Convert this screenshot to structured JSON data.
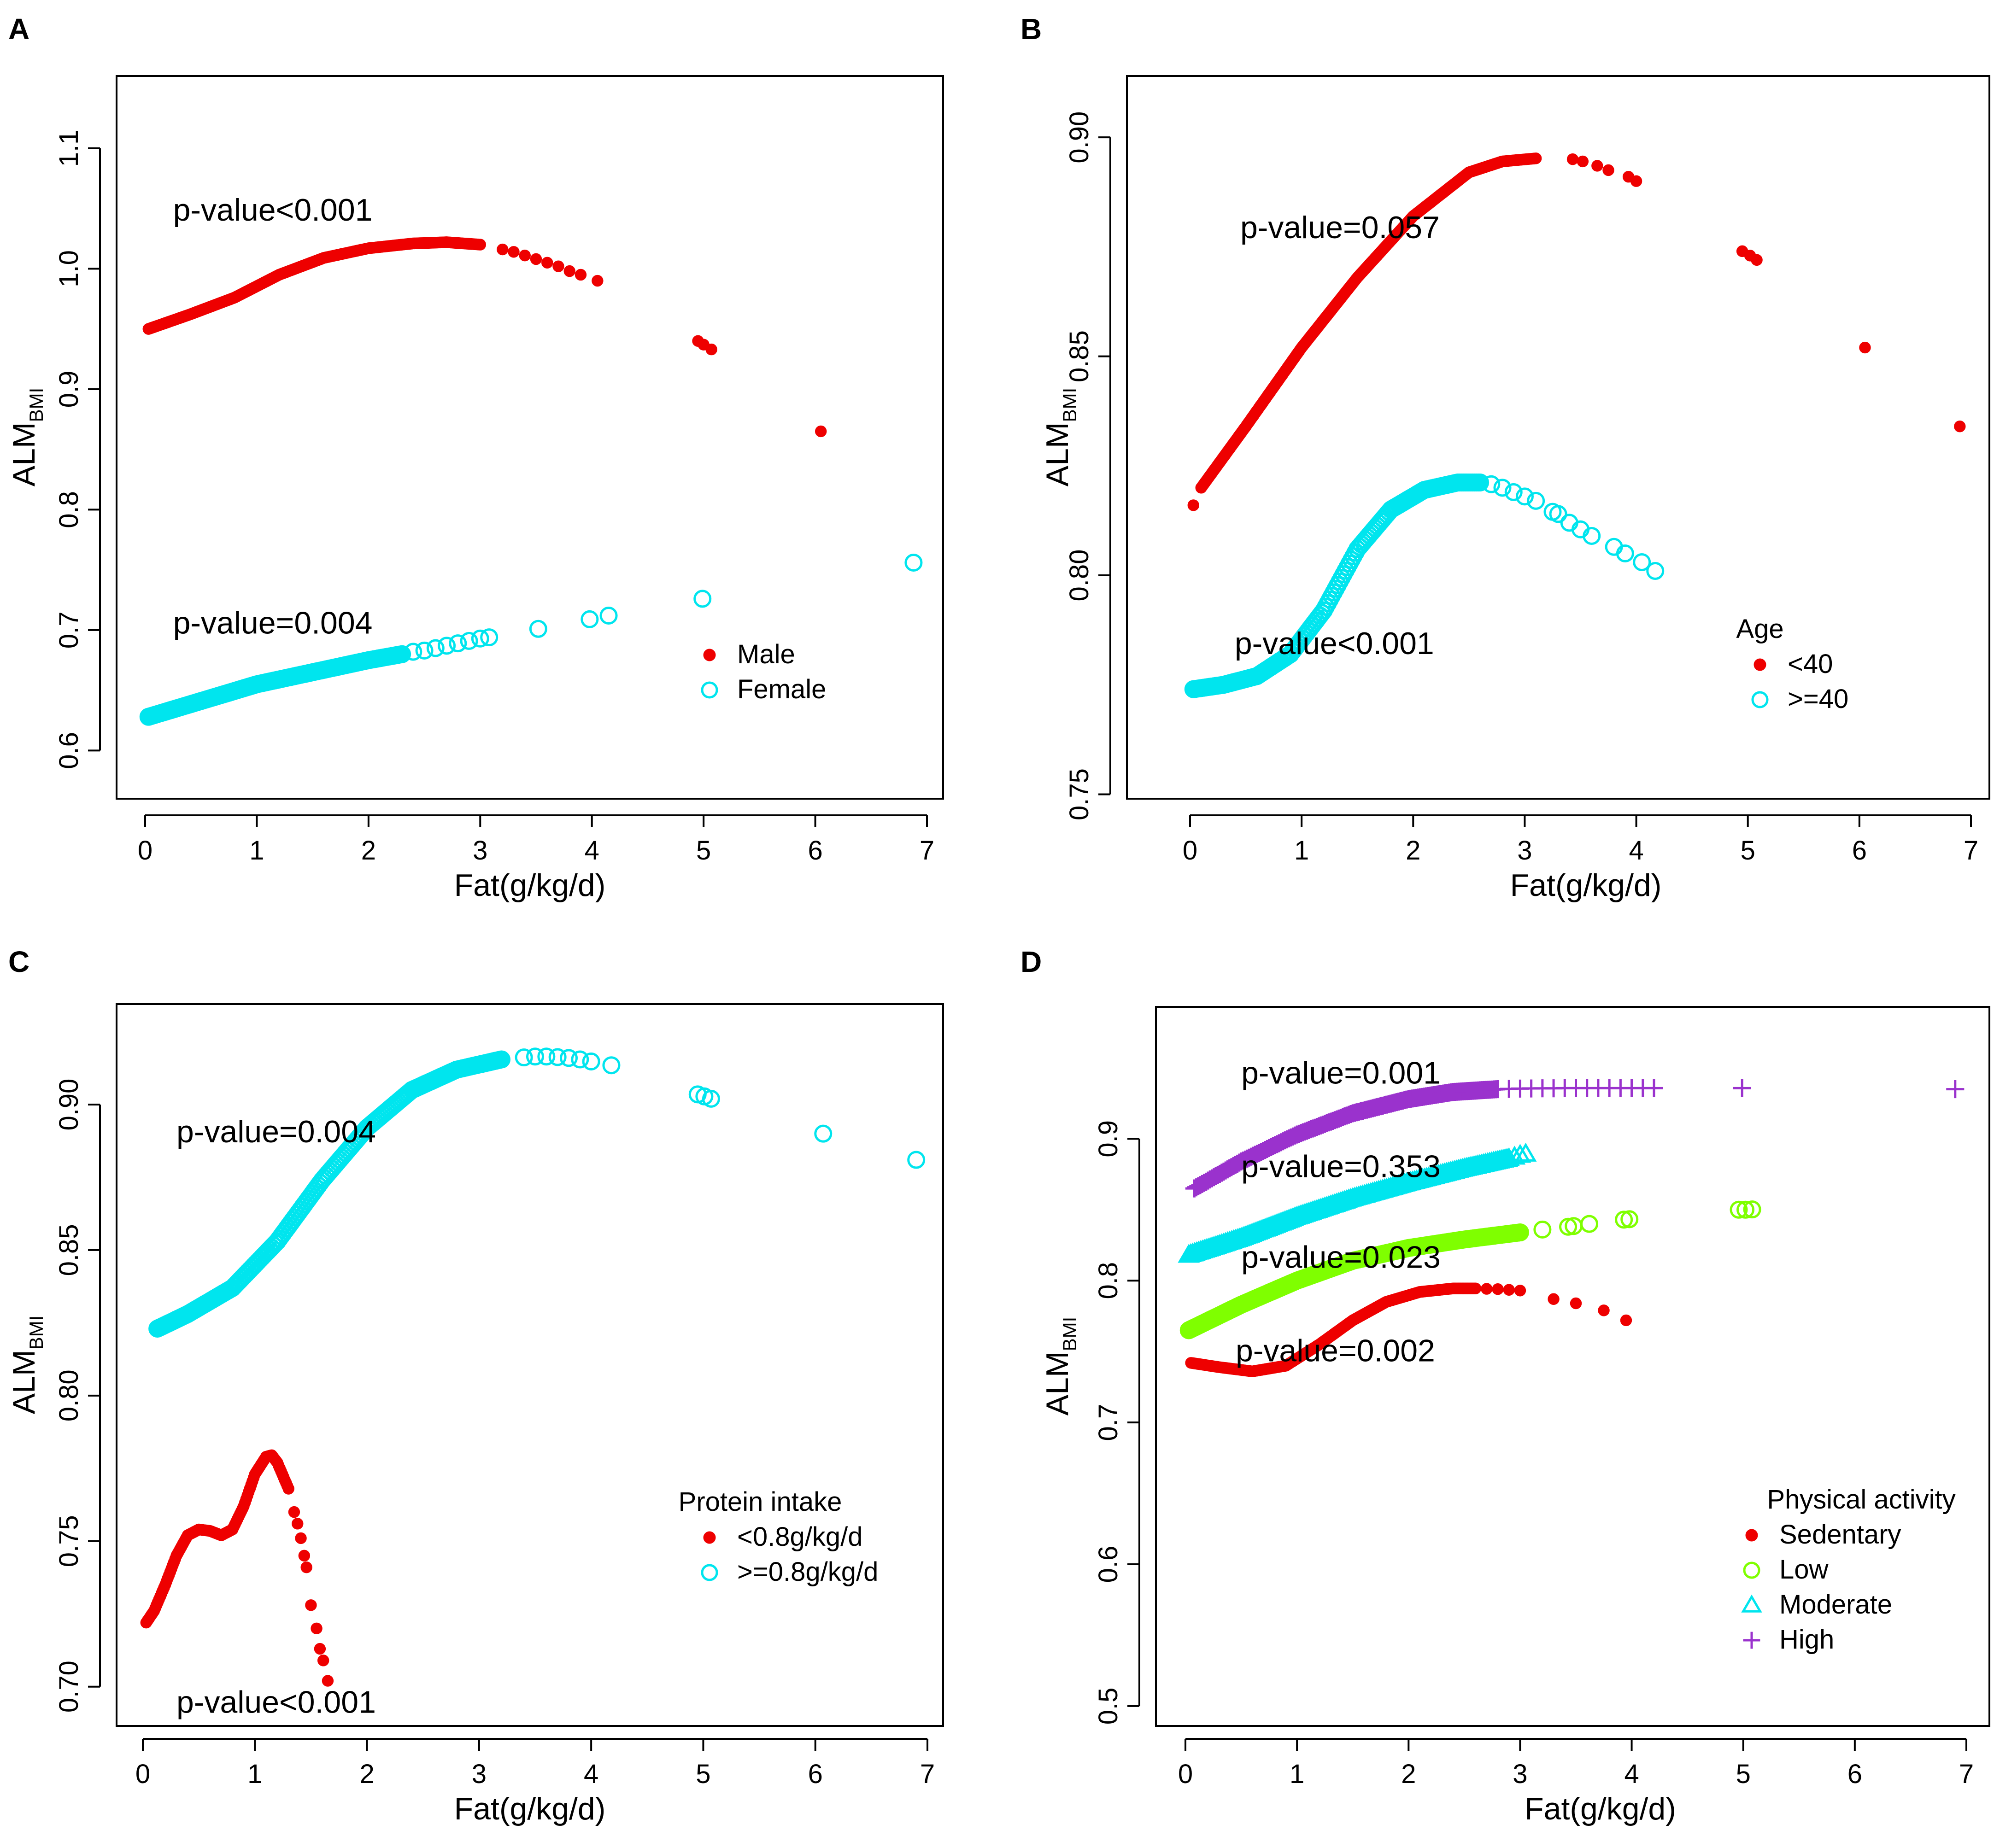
{
  "figure": {
    "colors": {
      "red": "#ee0000",
      "cyan": "#00e5ee",
      "green": "#7fff00",
      "purple": "#9a32cd",
      "axis": "#000000"
    }
  },
  "chart_data": [
    {
      "id": "A",
      "panel_label": "A",
      "type": "scatter",
      "xlabel": "Fat(g/kg/d)",
      "ylabel_main": "ALM",
      "ylabel_sub": "BMI",
      "xlim": [
        0,
        7
      ],
      "ylim": [
        0.56,
        1.16
      ],
      "xticks": [
        0,
        1,
        2,
        3,
        4,
        5,
        6,
        7
      ],
      "yticks": [
        0.6,
        0.7,
        0.8,
        0.9,
        1.0,
        1.1
      ],
      "ytick_labels": [
        "0.6",
        "0.7",
        "0.8",
        "0.9",
        "1.0",
        "1.1"
      ],
      "legend": {
        "title": "",
        "position": "bottom-right"
      },
      "series": [
        {
          "name": "Male",
          "color": "red",
          "marker": "filled-circle",
          "curve": [
            [
              0.03,
              0.95
            ],
            [
              0.4,
              0.962
            ],
            [
              0.8,
              0.976
            ],
            [
              1.2,
              0.995
            ],
            [
              1.6,
              1.009
            ],
            [
              2.0,
              1.017
            ],
            [
              2.4,
              1.021
            ],
            [
              2.7,
              1.022
            ],
            [
              3.0,
              1.02
            ]
          ],
          "points": [
            [
              3.2,
              1.016
            ],
            [
              3.3,
              1.014
            ],
            [
              3.4,
              1.011
            ],
            [
              3.5,
              1.008
            ],
            [
              3.6,
              1.005
            ],
            [
              3.7,
              1.002
            ],
            [
              3.8,
              0.998
            ],
            [
              3.9,
              0.995
            ],
            [
              4.05,
              0.99
            ],
            [
              4.95,
              0.94
            ],
            [
              5.0,
              0.937
            ],
            [
              5.07,
              0.933
            ],
            [
              6.05,
              0.865
            ]
          ]
        },
        {
          "name": "Female",
          "color": "cyan",
          "marker": "open-circle",
          "curve": [
            [
              0.03,
              0.628
            ],
            [
              1.0,
              0.655
            ],
            [
              2.0,
              0.675
            ],
            [
              2.3,
              0.68
            ]
          ],
          "points": [
            [
              2.4,
              0.682
            ],
            [
              2.5,
              0.683
            ],
            [
              2.6,
              0.685
            ],
            [
              2.7,
              0.687
            ],
            [
              2.8,
              0.689
            ],
            [
              2.9,
              0.691
            ],
            [
              3.0,
              0.693
            ],
            [
              3.08,
              0.694
            ],
            [
              3.52,
              0.701
            ],
            [
              3.98,
              0.709
            ],
            [
              4.15,
              0.712
            ],
            [
              4.99,
              0.726
            ],
            [
              6.88,
              0.756
            ]
          ]
        }
      ],
      "annotations": [
        {
          "text": "p-value<0.001",
          "x": 0.25,
          "y": 1.04
        },
        {
          "text": "p-value=0.004",
          "x": 0.25,
          "y": 0.697
        }
      ]
    },
    {
      "id": "B",
      "panel_label": "B",
      "type": "scatter",
      "xlabel": "Fat(g/kg/d)",
      "ylabel_main": "ALM",
      "ylabel_sub": "BMI",
      "xlim": [
        0,
        7
      ],
      "ylim": [
        0.749,
        0.914
      ],
      "xticks": [
        0,
        1,
        2,
        3,
        4,
        5,
        6,
        7
      ],
      "yticks": [
        0.75,
        0.8,
        0.85,
        0.9
      ],
      "ytick_labels": [
        "0.75",
        "0.80",
        "0.85",
        "0.90"
      ],
      "legend": {
        "title": "Age",
        "position": "bottom-right"
      },
      "series": [
        {
          "name": "<40",
          "color": "red",
          "marker": "filled-circle",
          "curve": [
            [
              0.1,
              0.82
            ],
            [
              0.5,
              0.834
            ],
            [
              1.0,
              0.852
            ],
            [
              1.5,
              0.868
            ],
            [
              2.0,
              0.882
            ],
            [
              2.5,
              0.892
            ],
            [
              2.8,
              0.8945
            ],
            [
              3.1,
              0.8952
            ]
          ],
          "points": [
            [
              0.03,
              0.816
            ],
            [
              3.43,
              0.895
            ],
            [
              3.52,
              0.8945
            ],
            [
              3.65,
              0.8935
            ],
            [
              3.75,
              0.8925
            ],
            [
              3.93,
              0.891
            ],
            [
              4.0,
              0.89
            ],
            [
              4.95,
              0.874
            ],
            [
              5.02,
              0.873
            ],
            [
              5.08,
              0.872
            ],
            [
              6.05,
              0.852
            ],
            [
              6.9,
              0.834
            ]
          ]
        },
        {
          "name": ">=40",
          "color": "cyan",
          "marker": "open-circle",
          "curve": [
            [
              0.03,
              0.774
            ],
            [
              0.3,
              0.775
            ],
            [
              0.6,
              0.777
            ],
            [
              0.9,
              0.782
            ],
            [
              1.2,
              0.792
            ],
            [
              1.5,
              0.806
            ],
            [
              1.8,
              0.815
            ],
            [
              2.1,
              0.8195
            ],
            [
              2.4,
              0.8212
            ],
            [
              2.6,
              0.8212
            ]
          ],
          "points": [
            [
              2.7,
              0.8208
            ],
            [
              2.8,
              0.82
            ],
            [
              2.9,
              0.819
            ],
            [
              3.0,
              0.818
            ],
            [
              3.1,
              0.817
            ],
            [
              3.25,
              0.8145
            ],
            [
              3.3,
              0.814
            ],
            [
              3.4,
              0.812
            ],
            [
              3.5,
              0.8105
            ],
            [
              3.6,
              0.809
            ],
            [
              3.8,
              0.8065
            ],
            [
              3.9,
              0.805
            ],
            [
              4.05,
              0.803
            ],
            [
              4.17,
              0.801
            ]
          ]
        }
      ],
      "annotations": [
        {
          "text": "p-value=0.057",
          "x": 0.45,
          "y": 0.877
        },
        {
          "text": "p-value<0.001",
          "x": 0.4,
          "y": 0.782
        }
      ]
    },
    {
      "id": "C",
      "panel_label": "C",
      "type": "scatter",
      "xlabel": "Fat(g/kg/d)",
      "ylabel_main": "ALM",
      "ylabel_sub": "BMI",
      "xlim": [
        0,
        7
      ],
      "ylim": [
        0.6865,
        0.9345
      ],
      "xticks": [
        0,
        1,
        2,
        3,
        4,
        5,
        6,
        7
      ],
      "yticks": [
        0.7,
        0.75,
        0.8,
        0.85,
        0.9
      ],
      "ytick_labels": [
        "0.70",
        "0.75",
        "0.80",
        "0.85",
        "0.90"
      ],
      "legend": {
        "title": "Protein intake",
        "position": "bottom-right"
      },
      "series": [
        {
          "name": "<0.8g/kg/d",
          "color": "red",
          "marker": "filled-circle",
          "curve": [
            [
              0.03,
              0.722
            ],
            [
              0.1,
              0.726
            ],
            [
              0.2,
              0.735
            ],
            [
              0.3,
              0.745
            ],
            [
              0.4,
              0.752
            ],
            [
              0.5,
              0.754
            ],
            [
              0.6,
              0.7535
            ],
            [
              0.7,
              0.752
            ],
            [
              0.8,
              0.754
            ],
            [
              0.9,
              0.762
            ],
            [
              1.0,
              0.773
            ],
            [
              1.1,
              0.779
            ],
            [
              1.15,
              0.7795
            ],
            [
              1.2,
              0.777
            ],
            [
              1.3,
              0.768
            ]
          ],
          "points": [
            [
              1.35,
              0.76
            ],
            [
              1.38,
              0.756
            ],
            [
              1.41,
              0.751
            ],
            [
              1.44,
              0.745
            ],
            [
              1.46,
              0.741
            ],
            [
              1.5,
              0.728
            ],
            [
              1.55,
              0.72
            ],
            [
              1.58,
              0.713
            ],
            [
              1.61,
              0.709
            ],
            [
              1.65,
              0.702
            ]
          ]
        },
        {
          "name": ">=0.8g/kg/d",
          "color": "cyan",
          "marker": "open-circle",
          "curve": [
            [
              0.13,
              0.823
            ],
            [
              0.4,
              0.828
            ],
            [
              0.8,
              0.837
            ],
            [
              1.2,
              0.853
            ],
            [
              1.6,
              0.874
            ],
            [
              2.0,
              0.892
            ],
            [
              2.4,
              0.905
            ],
            [
              2.8,
              0.912
            ],
            [
              3.2,
              0.9155
            ]
          ],
          "points": [
            [
              3.4,
              0.9162
            ],
            [
              3.5,
              0.9165
            ],
            [
              3.6,
              0.9165
            ],
            [
              3.7,
              0.9163
            ],
            [
              3.8,
              0.916
            ],
            [
              3.9,
              0.9155
            ],
            [
              4.0,
              0.9148
            ],
            [
              4.18,
              0.9135
            ],
            [
              4.95,
              0.9035
            ],
            [
              5.01,
              0.9028
            ],
            [
              5.07,
              0.902
            ],
            [
              6.07,
              0.89
            ],
            [
              6.9,
              0.881
            ]
          ]
        }
      ],
      "annotations": [
        {
          "text": "p-value=0.004",
          "x": 0.3,
          "y": 0.887
        },
        {
          "text": "p-value<0.001",
          "x": 0.3,
          "y": 0.691
        }
      ]
    },
    {
      "id": "D",
      "panel_label": "D",
      "type": "scatter",
      "xlabel": "Fat(g/kg/d)",
      "ylabel_main": "ALM",
      "ylabel_sub": "BMI",
      "xlim": [
        0,
        7
      ],
      "ylim": [
        0.486,
        0.993
      ],
      "xticks": [
        0,
        1,
        2,
        3,
        4,
        5,
        6,
        7
      ],
      "yticks": [
        0.5,
        0.6,
        0.7,
        0.8,
        0.9
      ],
      "ytick_labels": [
        "0.5",
        "0.6",
        "0.7",
        "0.8",
        "0.9"
      ],
      "legend": {
        "title": "Physical activity",
        "position": "bottom-right"
      },
      "series": [
        {
          "name": "Sedentary",
          "color": "red",
          "marker": "filled-circle",
          "curve": [
            [
              0.05,
              0.742
            ],
            [
              0.3,
              0.739
            ],
            [
              0.6,
              0.736
            ],
            [
              0.9,
              0.74
            ],
            [
              1.2,
              0.755
            ],
            [
              1.5,
              0.772
            ],
            [
              1.8,
              0.785
            ],
            [
              2.1,
              0.792
            ],
            [
              2.4,
              0.7945
            ],
            [
              2.6,
              0.7945
            ]
          ],
          "points": [
            [
              2.7,
              0.7942
            ],
            [
              2.8,
              0.794
            ],
            [
              2.9,
              0.7935
            ],
            [
              3.0,
              0.793
            ],
            [
              3.3,
              0.787
            ],
            [
              3.5,
              0.784
            ],
            [
              3.75,
              0.779
            ],
            [
              3.95,
              0.772
            ]
          ]
        },
        {
          "name": "Low",
          "color": "green",
          "marker": "open-circle",
          "curve": [
            [
              0.03,
              0.765
            ],
            [
              0.5,
              0.783
            ],
            [
              1.0,
              0.8
            ],
            [
              1.5,
              0.814
            ],
            [
              2.0,
              0.823
            ],
            [
              2.5,
              0.829
            ],
            [
              3.0,
              0.834
            ]
          ],
          "points": [
            [
              3.2,
              0.836
            ],
            [
              3.43,
              0.838
            ],
            [
              3.48,
              0.8385
            ],
            [
              3.62,
              0.84
            ],
            [
              3.93,
              0.843
            ],
            [
              3.98,
              0.8433
            ],
            [
              4.96,
              0.85
            ],
            [
              5.02,
              0.85
            ],
            [
              5.08,
              0.8502
            ]
          ]
        },
        {
          "name": "Moderate",
          "color": "cyan",
          "marker": "open-triangle",
          "curve": [
            [
              0.03,
              0.818
            ],
            [
              0.5,
              0.83
            ],
            [
              1.0,
              0.845
            ],
            [
              1.5,
              0.858
            ],
            [
              2.0,
              0.869
            ],
            [
              2.5,
              0.879
            ],
            [
              2.9,
              0.886
            ]
          ],
          "points": [
            [
              2.95,
              0.8872
            ],
            [
              3.0,
              0.8885
            ],
            [
              3.05,
              0.8893
            ]
          ]
        },
        {
          "name": "High",
          "color": "purple",
          "marker": "plus",
          "curve": [
            [
              0.08,
              0.865
            ],
            [
              0.5,
              0.884
            ],
            [
              1.0,
              0.903
            ],
            [
              1.5,
              0.918
            ],
            [
              2.0,
              0.928
            ],
            [
              2.4,
              0.933
            ],
            [
              2.8,
              0.935
            ]
          ],
          "points": [
            [
              2.9,
              0.9352
            ],
            [
              3.0,
              0.9354
            ],
            [
              3.1,
              0.9355
            ],
            [
              3.2,
              0.9356
            ],
            [
              3.3,
              0.9356
            ],
            [
              3.4,
              0.9357
            ],
            [
              3.5,
              0.9357
            ],
            [
              3.6,
              0.9357
            ],
            [
              3.7,
              0.9357
            ],
            [
              3.8,
              0.9357
            ],
            [
              3.9,
              0.9357
            ],
            [
              4.0,
              0.9357
            ],
            [
              4.1,
              0.9357
            ],
            [
              4.2,
              0.9357
            ],
            [
              4.99,
              0.9357
            ],
            [
              6.9,
              0.935
            ]
          ]
        }
      ],
      "annotations": [
        {
          "text": "p-value=0.001",
          "x": 0.5,
          "y": 0.939
        },
        {
          "text": "p-value=0.353",
          "x": 0.5,
          "y": 0.873
        },
        {
          "text": "p-value=0.023",
          "x": 0.5,
          "y": 0.809
        },
        {
          "text": "p-value=0.002",
          "x": 0.45,
          "y": 0.743
        }
      ]
    }
  ]
}
